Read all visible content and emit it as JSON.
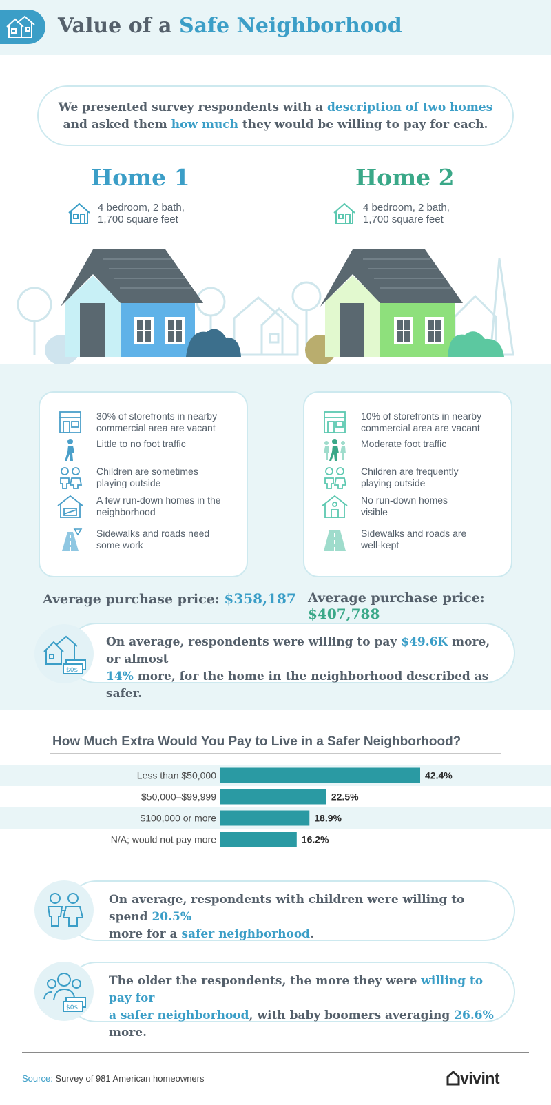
{
  "header": {
    "title_part1": "Value of a ",
    "title_part2": "Safe Neighborhood"
  },
  "intro": {
    "l1_a": "We presented survey respondents with a ",
    "l1_b": "description of two homes",
    "l2_a": "and asked them ",
    "l2_b": "how much",
    "l2_c": " they would be willing to pay for each."
  },
  "home1": {
    "title": "Home 1",
    "desc_l1": "4 bedroom, 2 bath,",
    "desc_l2": "1,700 square feet",
    "features": [
      {
        "icon": "storefront-icon",
        "l1": "30% of storefronts in nearby",
        "l2": "commercial area are vacant"
      },
      {
        "icon": "walker-icon",
        "l1": "Little to no foot traffic",
        "l2": ""
      },
      {
        "icon": "children-icon",
        "l1": "Children are sometimes",
        "l2": "playing outside"
      },
      {
        "icon": "rundown-house-icon",
        "l1": "A few run-down homes in the",
        "l2": "neighborhood"
      },
      {
        "icon": "road-icon",
        "l1": "Sidewalks and roads need",
        "l2": "some work"
      }
    ],
    "price_label": "Average purchase price: ",
    "price_value": "$358,187"
  },
  "home2": {
    "title": "Home 2",
    "desc_l1": "4 bedroom, 2 bath,",
    "desc_l2": "1,700 square feet",
    "features": [
      {
        "icon": "storefront-icon",
        "l1": "10% of storefronts in nearby",
        "l2": "commercial area are vacant"
      },
      {
        "icon": "walkers-icon",
        "l1": "Moderate foot traffic",
        "l2": ""
      },
      {
        "icon": "children-icon",
        "l1": "Children are frequently",
        "l2": "playing outside"
      },
      {
        "icon": "house-icon",
        "l1": "No run-down homes",
        "l2": "visible"
      },
      {
        "icon": "road-icon",
        "l1": "Sidewalks and roads are",
        "l2": "well-kept"
      }
    ],
    "price_label": "Average purchase price: ",
    "price_value": "$407,788"
  },
  "note1": {
    "a": "On average, respondents were willing to pay ",
    "b": "$49.6K",
    "c": " more, or almost",
    "d": "14%",
    "e": " more, for the home in the neighborhood described as safer."
  },
  "chart_data": {
    "type": "bar",
    "orientation": "horizontal",
    "title": "How Much Extra Would You Pay to Live in a Safer Neighborhood?",
    "categories": [
      "Less than $50,000",
      "$50,000–$99,999",
      "$100,000 or more",
      "N/A; would not pay more"
    ],
    "values": [
      42.4,
      22.5,
      18.9,
      16.2
    ],
    "value_labels": [
      "42.4%",
      "22.5%",
      "18.9%",
      "16.2%"
    ],
    "bar_color": "#2a9aa3"
  },
  "note2": {
    "a": "On average, respondents with children were willing to spend ",
    "b": "20.5%",
    "c": "more for a ",
    "d": "safer neighborhood",
    "e": "."
  },
  "note3": {
    "a": "The older the respondents, the more they were ",
    "b": "willing to pay for",
    "c": "a safer neighborhood",
    "d": ", with baby boomers averaging ",
    "e": "26.6%",
    "f": " more."
  },
  "footer": {
    "source_label": "Source:",
    "source_text": " Survey of 981 American homeowners",
    "logo": "vivint"
  },
  "colors": {
    "blue": "#3b9ec7",
    "green": "#3aa888",
    "teal_bar": "#2a9aa3"
  }
}
